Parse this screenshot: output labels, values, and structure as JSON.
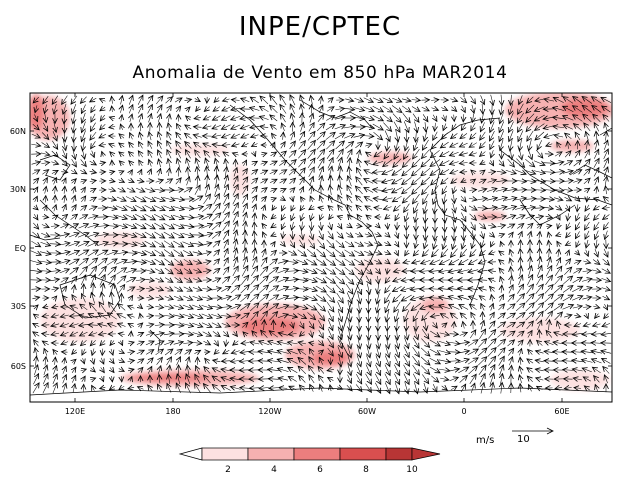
{
  "header": {
    "title": "INPE/CPTEC",
    "subtitle": "Anomalia de Vento em 850 hPa MAR2014"
  },
  "map": {
    "lat_labels": [
      "60N",
      "30N",
      "EQ",
      "30S",
      "60S"
    ],
    "lon_labels": [
      "120E",
      "180",
      "120W",
      "60W",
      "0",
      "60E"
    ],
    "shade_colors": [
      "#ffffff",
      "#fde1e1",
      "#f6b1b1",
      "#ec7e7e",
      "#d94f4f",
      "#b83535"
    ]
  },
  "colorbar": {
    "labels": [
      "2",
      "4",
      "6",
      "8",
      "10"
    ]
  },
  "reference_vector": {
    "units": "m/s",
    "value": "10"
  }
}
